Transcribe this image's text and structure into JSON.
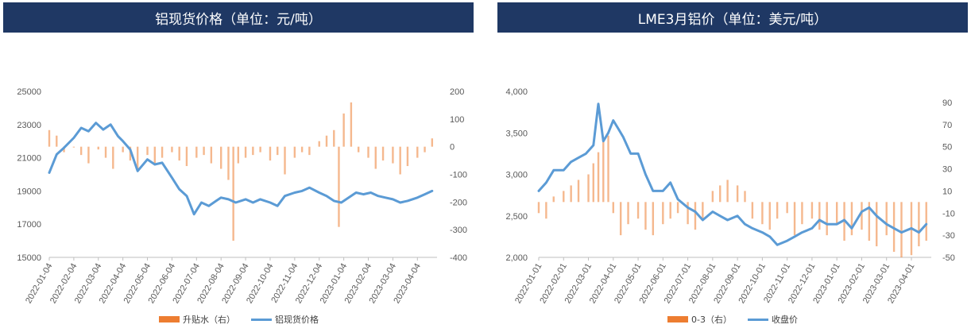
{
  "charts": [
    {
      "panel_title": "铝现货价格（单位：元/吨）",
      "legend": [
        {
          "label": "升贴水（右）",
          "kind": "bar",
          "color": "#ed7d31"
        },
        {
          "label": "铝现货价格",
          "kind": "line",
          "color": "#5b9bd5"
        }
      ]
    },
    {
      "panel_title": "LME3月铝价（单位：美元/吨）",
      "legend": [
        {
          "label": "0-3（右）",
          "kind": "bar",
          "color": "#ed7d31"
        },
        {
          "label": "收盘价",
          "kind": "line",
          "color": "#5b9bd5"
        }
      ]
    }
  ],
  "chart_data": [
    {
      "type": "bar+line",
      "title": "铝现货价格（单位：元/吨）",
      "x_ticks": [
        "2022-01-04",
        "2022-02-04",
        "2022-03-04",
        "2022-04-04",
        "2022-05-04",
        "2022-06-04",
        "2022-07-04",
        "2022-08-04",
        "2022-09-04",
        "2022-10-04",
        "2022-11-04",
        "2022-12-04",
        "2023-01-04",
        "2023-02-04",
        "2023-03-04",
        "2023-04-04"
      ],
      "y_left": {
        "min": 15000,
        "max": 25000,
        "ticks": [
          "15000",
          "17000",
          "19000",
          "21000",
          "23000",
          "25000"
        ]
      },
      "y_right": {
        "min": -400,
        "max": 200,
        "ticks": [
          "-400",
          "-300",
          "-200",
          "-100",
          "0",
          "100",
          "200"
        ]
      },
      "series": [
        {
          "name": "升贴水（右）",
          "type": "bar",
          "axis": "right",
          "color": "#ed7d31",
          "x": [
            0,
            0.3,
            0.6,
            1,
            1.3,
            1.6,
            2,
            2.3,
            2.6,
            3,
            3.3,
            3.6,
            4,
            4.3,
            4.6,
            5,
            5.3,
            5.6,
            6,
            6.3,
            6.6,
            7,
            7.3,
            7.5,
            7.7,
            8,
            8.3,
            8.6,
            9,
            9.3,
            9.6,
            10,
            10.3,
            10.6,
            11,
            11.3,
            11.6,
            11.8,
            12,
            12.3,
            12.6,
            13,
            13.3,
            13.6,
            14,
            14.3,
            14.6,
            15,
            15.3,
            15.6
          ],
          "values": [
            60,
            40,
            -20,
            0,
            -30,
            -60,
            -10,
            -40,
            -80,
            -20,
            -50,
            -90,
            -30,
            -60,
            -40,
            -20,
            -50,
            -70,
            -40,
            -30,
            -60,
            -80,
            -120,
            -340,
            -60,
            -40,
            -30,
            -20,
            -50,
            -30,
            -100,
            -40,
            -20,
            -30,
            20,
            40,
            60,
            -290,
            120,
            160,
            -20,
            -40,
            -80,
            -50,
            -60,
            -100,
            -70,
            -40,
            -20,
            30
          ],
          "bar_opacity": 0.55
        },
        {
          "name": "铝现货价格",
          "type": "line",
          "axis": "left",
          "color": "#5b9bd5",
          "x": [
            0,
            0.3,
            0.6,
            1,
            1.3,
            1.6,
            1.9,
            2.2,
            2.5,
            2.8,
            3,
            3.3,
            3.6,
            4,
            4.3,
            4.6,
            5,
            5.3,
            5.6,
            5.9,
            6.2,
            6.5,
            6.8,
            7,
            7.3,
            7.6,
            8,
            8.3,
            8.6,
            9,
            9.3,
            9.6,
            10,
            10.3,
            10.6,
            11,
            11.3,
            11.6,
            11.9,
            12.2,
            12.5,
            12.8,
            13.1,
            13.4,
            13.7,
            14,
            14.3,
            14.6,
            15,
            15.3,
            15.6
          ],
          "values": [
            20100,
            21200,
            21600,
            22200,
            22800,
            22600,
            23100,
            22700,
            23000,
            22300,
            22000,
            21500,
            20200,
            20900,
            20600,
            20700,
            19800,
            19100,
            18700,
            17600,
            18300,
            18100,
            18400,
            18600,
            18500,
            18300,
            18500,
            18300,
            18500,
            18300,
            18100,
            18700,
            18900,
            19000,
            19200,
            18900,
            18700,
            18400,
            18300,
            18600,
            18900,
            18800,
            18900,
            18700,
            18600,
            18500,
            18300,
            18400,
            18600,
            18800,
            19000
          ]
        }
      ]
    },
    {
      "type": "bar+line",
      "title": "LME3月铝价（单位：美元/吨）",
      "x_ticks": [
        "2022-01-01",
        "2022-02-01",
        "2022-03-01",
        "2022-04-01",
        "2022-05-01",
        "2022-06-01",
        "2022-07-01",
        "2022-08-01",
        "2022-09-01",
        "2022-10-01",
        "2022-11-01",
        "2022-12-01",
        "2023-01-01",
        "2023-02-01",
        "2023-03-01",
        "2023-04-01"
      ],
      "y_left": {
        "min": 2000,
        "max": 4000,
        "ticks": [
          "2,000",
          "2,500",
          "3,000",
          "3,500",
          "4,000"
        ]
      },
      "y_right": {
        "min": -50,
        "max": 100,
        "ticks": [
          "-50",
          "-30",
          "-10",
          "10",
          "30",
          "50",
          "70",
          "90"
        ]
      },
      "series": [
        {
          "name": "0-3（右）",
          "type": "bar",
          "axis": "right",
          "color": "#ed7d31",
          "x": [
            0,
            0.3,
            0.6,
            1,
            1.3,
            1.6,
            2,
            2.2,
            2.4,
            2.6,
            2.8,
            3,
            3.3,
            3.6,
            4,
            4.3,
            4.6,
            5,
            5.3,
            5.6,
            6,
            6.3,
            6.6,
            7,
            7.3,
            7.6,
            8,
            8.3,
            8.6,
            9,
            9.3,
            9.6,
            10,
            10.3,
            10.6,
            11,
            11.3,
            11.6,
            12,
            12.3,
            12.6,
            13,
            13.3,
            13.6,
            14,
            14.3,
            14.6,
            15,
            15.3,
            15.6
          ],
          "values": [
            -10,
            -15,
            5,
            10,
            15,
            20,
            25,
            35,
            45,
            55,
            60,
            -10,
            -30,
            -20,
            -15,
            -25,
            -30,
            -20,
            -15,
            -10,
            -20,
            -25,
            -15,
            10,
            15,
            20,
            15,
            10,
            -15,
            -20,
            -25,
            -15,
            -10,
            -30,
            -20,
            -15,
            -25,
            -30,
            -20,
            -35,
            -30,
            -25,
            -35,
            -40,
            -30,
            -45,
            -50,
            -48,
            -40,
            -35
          ],
          "bar_opacity": 0.55
        },
        {
          "name": "收盘价",
          "type": "line",
          "axis": "left",
          "color": "#5b9bd5",
          "x": [
            0,
            0.3,
            0.6,
            1,
            1.3,
            1.6,
            1.9,
            2.2,
            2.4,
            2.6,
            2.8,
            3,
            3.2,
            3.4,
            3.7,
            4,
            4.3,
            4.6,
            5,
            5.3,
            5.6,
            6,
            6.3,
            6.6,
            7,
            7.3,
            7.6,
            8,
            8.3,
            8.6,
            9,
            9.3,
            9.6,
            10,
            10.3,
            10.6,
            11,
            11.3,
            11.6,
            12,
            12.3,
            12.6,
            13,
            13.3,
            13.6,
            14,
            14.3,
            14.6,
            15,
            15.3,
            15.6
          ],
          "values": [
            2800,
            2900,
            3050,
            3050,
            3150,
            3200,
            3250,
            3350,
            3850,
            3400,
            3500,
            3650,
            3550,
            3450,
            3250,
            3250,
            3000,
            2800,
            2800,
            2900,
            2700,
            2600,
            2550,
            2450,
            2550,
            2500,
            2450,
            2500,
            2400,
            2350,
            2300,
            2250,
            2150,
            2200,
            2250,
            2300,
            2350,
            2450,
            2400,
            2400,
            2450,
            2350,
            2550,
            2600,
            2500,
            2400,
            2350,
            2300,
            2350,
            2300,
            2400
          ]
        }
      ]
    }
  ]
}
